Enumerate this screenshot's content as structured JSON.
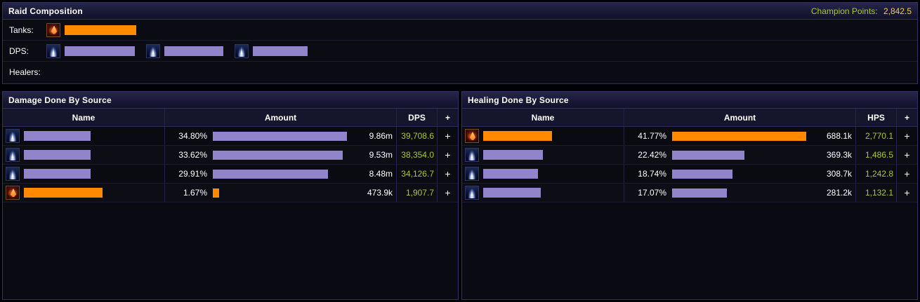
{
  "colors": {
    "purple": "#9184ca",
    "orange": "#ff8a00",
    "metric_green": "#a9c831",
    "gold": "#ffc83d"
  },
  "raid_composition": {
    "title": "Raid Composition",
    "champion_points_label": "Champion Points:",
    "champion_points_value": "2,842.5",
    "tanks_label": "Tanks:",
    "dps_label": "DPS:",
    "healers_label": "Healers:",
    "tanks": [
      {
        "icon": "red-flame",
        "color": "#ff8a00",
        "name_w": 102
      }
    ],
    "dps": [
      {
        "icon": "blue-flame",
        "color": "#9184ca",
        "name_w": 100
      },
      {
        "icon": "blue-flame",
        "color": "#9184ca",
        "name_w": 84
      },
      {
        "icon": "blue-flame",
        "color": "#9184ca",
        "name_w": 78
      }
    ],
    "healers": []
  },
  "damage_table": {
    "title": "Damage Done By Source",
    "columns": {
      "name": "Name",
      "amount": "Amount",
      "metric": "DPS",
      "plus": "+"
    },
    "rows": [
      {
        "icon": "blue-flame",
        "color": "#9184ca",
        "name_w": 95,
        "percent": "34.80%",
        "percent_value": 34.8,
        "amount": "9.86m",
        "metric": "39,708.6",
        "plus": "+"
      },
      {
        "icon": "blue-flame",
        "color": "#9184ca",
        "name_w": 95,
        "percent": "33.62%",
        "percent_value": 33.62,
        "amount": "9.53m",
        "metric": "38,354.0",
        "plus": "+"
      },
      {
        "icon": "blue-flame",
        "color": "#9184ca",
        "name_w": 95,
        "percent": "29.91%",
        "percent_value": 29.91,
        "amount": "8.48m",
        "metric": "34,126.7",
        "plus": "+"
      },
      {
        "icon": "red-flame",
        "color": "#ff8a00",
        "name_w": 112,
        "percent": "1.67%",
        "percent_value": 1.67,
        "amount": "473.9k",
        "metric": "1,907.7",
        "plus": "+"
      }
    ]
  },
  "healing_table": {
    "title": "Healing Done By Source",
    "columns": {
      "name": "Name",
      "amount": "Amount",
      "metric": "HPS",
      "plus": "+"
    },
    "rows": [
      {
        "icon": "red-flame",
        "color": "#ff8a00",
        "name_w": 98,
        "percent": "41.77%",
        "percent_value": 41.77,
        "amount": "688.1k",
        "metric": "2,770.1",
        "plus": "+"
      },
      {
        "icon": "blue-flame",
        "color": "#9184ca",
        "name_w": 85,
        "percent": "22.42%",
        "percent_value": 22.42,
        "amount": "369.3k",
        "metric": "1,486.5",
        "plus": "+"
      },
      {
        "icon": "blue-flame",
        "color": "#9184ca",
        "name_w": 78,
        "percent": "18.74%",
        "percent_value": 18.74,
        "amount": "308.7k",
        "metric": "1,242.8",
        "plus": "+"
      },
      {
        "icon": "blue-flame",
        "color": "#9184ca",
        "name_w": 82,
        "percent": "17.07%",
        "percent_value": 17.07,
        "amount": "281.2k",
        "metric": "1,132.1",
        "plus": "+"
      }
    ]
  }
}
